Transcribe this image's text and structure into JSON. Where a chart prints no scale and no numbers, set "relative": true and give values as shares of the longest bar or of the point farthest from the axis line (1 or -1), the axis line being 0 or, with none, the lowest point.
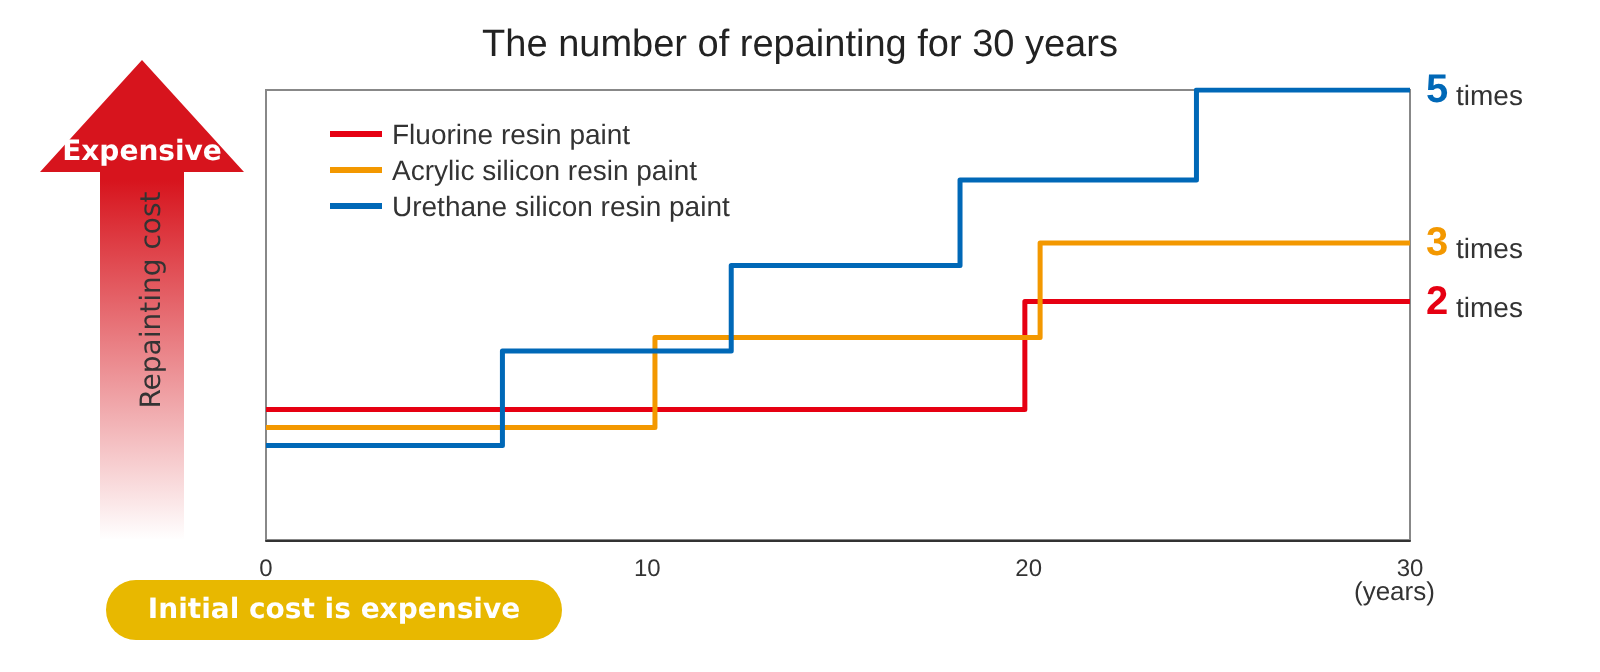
{
  "chart_data": {
    "type": "step",
    "title": "The number of repainting for 30 years",
    "xlabel": "(years)",
    "ylabel": "Repainting cost",
    "relative": true,
    "xlim": [
      0,
      30
    ],
    "xticks": [
      0,
      10,
      20,
      30
    ],
    "legend": "top left",
    "marker": "none",
    "line_style": "solid",
    "series": [
      {
        "name": "Fluorine resin paint",
        "color": "#e60012",
        "x": [
          0,
          19.9,
          30
        ],
        "values": [
          0.29,
          0.53,
          0.53
        ]
      },
      {
        "name": "Acrylic silicon resin paint",
        "color": "#f39800",
        "x": [
          0,
          10.2,
          20.3,
          30
        ],
        "values": [
          0.25,
          0.45,
          0.66,
          0.66
        ]
      },
      {
        "name": "Urethane silicon resin paint",
        "color": "#0068b7",
        "x": [
          0,
          6.2,
          12.2,
          18.2,
          24.4,
          30
        ],
        "values": [
          0.21,
          0.42,
          0.61,
          0.8,
          1,
          1
        ]
      }
    ],
    "annotations": [
      "5 times",
      "3 times",
      "2 times",
      "Expensive",
      "Initial cost is expensive"
    ]
  }
}
